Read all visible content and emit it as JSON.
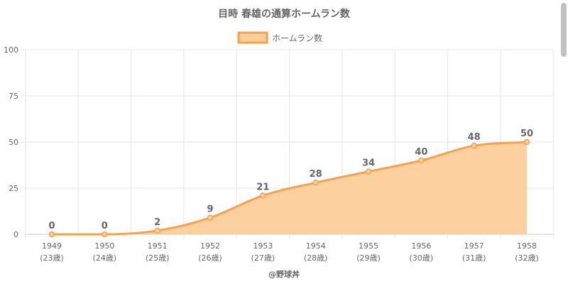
{
  "chart_data": {
    "type": "area",
    "title": "目時 春雄の通算ホームラン数",
    "categories": [
      "1949",
      "1950",
      "1951",
      "1952",
      "1953",
      "1954",
      "1955",
      "1956",
      "1957",
      "1958"
    ],
    "category_sublabels": [
      "(23歳)",
      "(24歳)",
      "(25歳)",
      "(26歳)",
      "(27歳)",
      "(28歳)",
      "(29歳)",
      "(30歳)",
      "(31歳)",
      "(32歳)"
    ],
    "series": [
      {
        "name": "ホームラン数",
        "values": [
          0,
          0,
          2,
          9,
          21,
          28,
          34,
          40,
          48,
          50
        ]
      }
    ],
    "ylim": [
      0,
      100
    ],
    "yticks": [
      0,
      25,
      50,
      75,
      100
    ],
    "grid": true,
    "legend": "top",
    "colors": {
      "line": "#f7a24a",
      "fill": "#fdcd9b",
      "grid": "#e6e6e6",
      "text": "#666666"
    }
  },
  "credit": "@野球丼"
}
